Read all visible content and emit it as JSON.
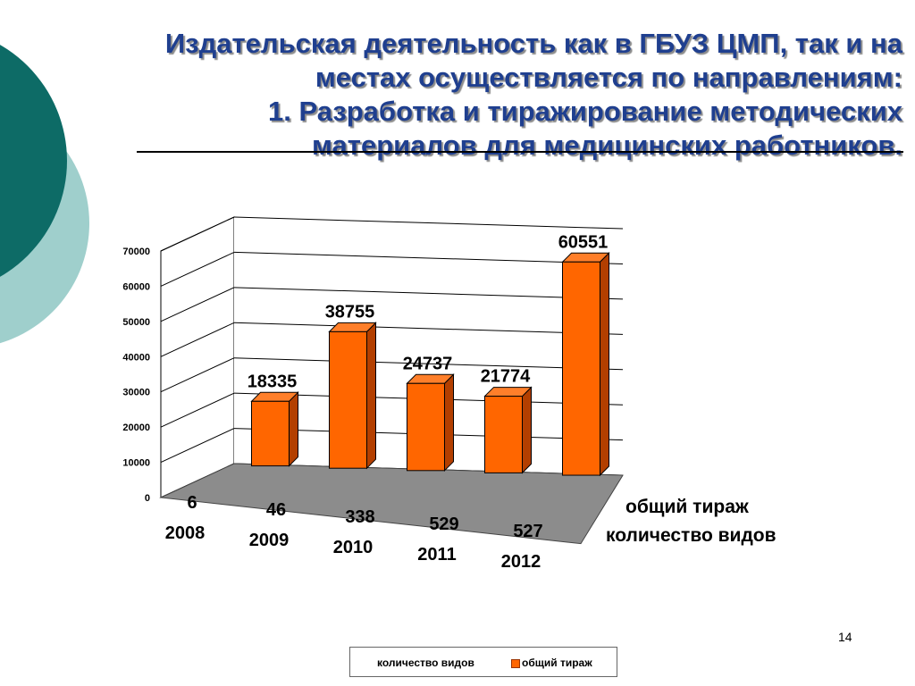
{
  "slide": {
    "title_lines": [
      "Издательская деятельность как в ГБУЗ ЦМП, так и на",
      "местах осуществляется по направлениям:",
      "1. Разработка и тиражирование методических",
      "материалов для медицинских работников."
    ],
    "page_number": "14",
    "colors": {
      "title": "#1f3f8f",
      "decor_dark": "#0d6b66",
      "decor_light": "#9fcfcc"
    }
  },
  "chart_data": {
    "type": "bar",
    "categories": [
      "2008",
      "2009",
      "2010",
      "2011",
      "2012"
    ],
    "series": [
      {
        "name": "количество видов",
        "values": [
          6,
          46,
          338,
          529,
          527
        ],
        "color": "#ff6600"
      },
      {
        "name": "общий тираж",
        "values": [
          18335,
          38755,
          24737,
          21774,
          60551
        ],
        "color": "#ff6600"
      }
    ],
    "depth_labels": [
      "общий тираж",
      "количество видов"
    ],
    "ylim": [
      0,
      70000
    ],
    "yticks": [
      "0",
      "10000",
      "20000",
      "30000",
      "40000",
      "50000",
      "60000",
      "70000"
    ],
    "grid": true,
    "legend": {
      "position": "bottom",
      "items": [
        "количество видов",
        "общий тираж"
      ]
    }
  }
}
